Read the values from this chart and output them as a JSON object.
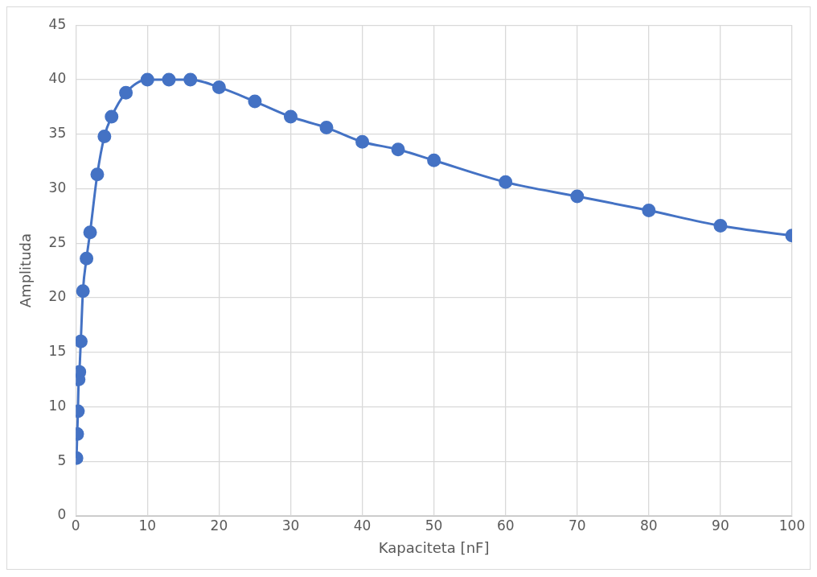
{
  "chart_data": {
    "type": "line",
    "xlabel": "Kapaciteta [nF]",
    "ylabel": "Amplituda",
    "x": [
      0.1,
      0.2,
      0.3,
      0.4,
      0.5,
      0.7,
      1,
      1.5,
      2,
      3,
      4,
      5,
      7,
      10,
      13,
      16,
      20,
      25,
      30,
      35,
      40,
      45,
      50,
      60,
      70,
      80,
      90,
      100
    ],
    "series": [
      {
        "color": "#4472c4",
        "values": [
          5.3,
          7.5,
          9.6,
          12.5,
          13.2,
          16,
          20.6,
          23.6,
          26,
          31.3,
          34.8,
          36.6,
          38.8,
          40,
          40,
          40,
          39.3,
          38,
          36.6,
          35.6,
          34.3,
          33.6,
          32.6,
          30.6,
          29.3,
          28,
          26.6,
          25.7
        ]
      }
    ],
    "xlim": [
      0,
      100
    ],
    "xticks": [
      0,
      10,
      20,
      30,
      40,
      50,
      60,
      70,
      80,
      90,
      100
    ],
    "ylim": [
      0,
      45
    ],
    "yticks": [
      0,
      5,
      10,
      15,
      20,
      25,
      30,
      35,
      40,
      45
    ],
    "grid": true,
    "legend": false,
    "marker": "circle",
    "line_style": "solid"
  }
}
